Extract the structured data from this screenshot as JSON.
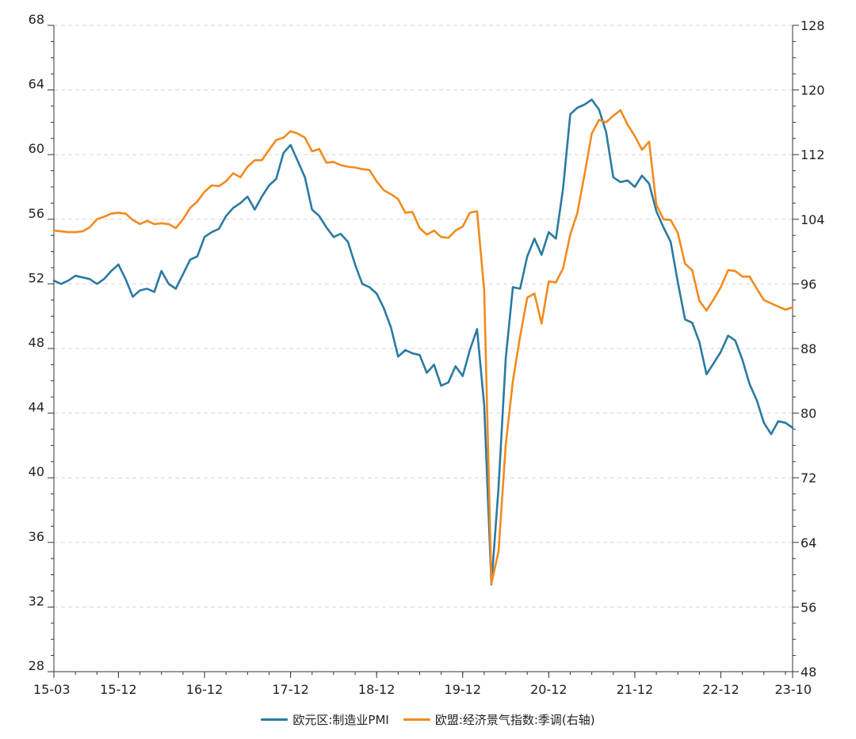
{
  "chart_data": {
    "type": "line",
    "title": "",
    "x_ticks": [
      "15-03",
      "15-12",
      "16-12",
      "17-12",
      "18-12",
      "19-12",
      "20-12",
      "21-12",
      "22-12",
      "23-10"
    ],
    "x_start": "2015-03",
    "x_end": "2023-10",
    "y_left": {
      "lim": [
        28,
        68
      ],
      "ticks": [
        28,
        32,
        36,
        40,
        44,
        48,
        52,
        56,
        60,
        64,
        68
      ]
    },
    "y_right": {
      "lim": [
        48,
        128
      ],
      "ticks": [
        48,
        56,
        64,
        72,
        80,
        88,
        96,
        104,
        112,
        120,
        128
      ]
    },
    "grid": "horizontal-dashed",
    "legend_position": "bottom",
    "series": [
      {
        "name": "欧元区:制造业PMI",
        "axis": "left",
        "color": "#2a7aa3",
        "values": [
          52.2,
          52.0,
          52.2,
          52.5,
          52.4,
          52.3,
          52.0,
          52.3,
          52.8,
          53.2,
          52.3,
          51.2,
          51.6,
          51.7,
          51.5,
          52.8,
          52.0,
          51.7,
          52.6,
          53.5,
          53.7,
          54.9,
          55.2,
          55.4,
          56.2,
          56.7,
          57.0,
          57.4,
          56.6,
          57.4,
          58.1,
          58.5,
          60.1,
          60.6,
          59.6,
          58.6,
          56.6,
          56.2,
          55.5,
          54.9,
          55.1,
          54.6,
          53.2,
          52.0,
          51.8,
          51.4,
          50.5,
          49.3,
          47.5,
          47.9,
          47.7,
          47.6,
          46.5,
          47.0,
          45.7,
          45.9,
          46.9,
          46.3,
          47.9,
          49.2,
          44.5,
          33.4,
          39.4,
          47.4,
          51.8,
          51.7,
          53.7,
          54.8,
          53.8,
          55.2,
          54.8,
          57.9,
          62.5,
          62.9,
          63.1,
          63.4,
          62.8,
          61.4,
          58.6,
          58.3,
          58.4,
          58.0,
          58.7,
          58.2,
          56.5,
          55.5,
          54.6,
          52.1,
          49.8,
          49.6,
          48.4,
          46.4,
          47.1,
          47.8,
          48.8,
          48.5,
          47.3,
          45.8,
          44.8,
          43.4,
          42.7,
          43.5,
          43.4,
          43.1
        ]
      },
      {
        "name": "欧盟:经济景气指数:季调(右轴)",
        "axis": "right",
        "color": "#f28a1e",
        "values": [
          102.6,
          102.5,
          102.4,
          102.4,
          102.5,
          103.0,
          104.0,
          104.3,
          104.7,
          104.8,
          104.7,
          103.9,
          103.4,
          103.8,
          103.4,
          103.5,
          103.4,
          102.9,
          104.0,
          105.4,
          106.2,
          107.4,
          108.2,
          108.1,
          108.7,
          109.7,
          109.2,
          110.5,
          111.3,
          111.3,
          112.6,
          113.8,
          114.1,
          114.9,
          114.6,
          114.1,
          112.4,
          112.7,
          111.0,
          111.1,
          110.7,
          110.5,
          110.4,
          110.2,
          110.1,
          108.7,
          107.6,
          107.1,
          106.5,
          104.8,
          104.9,
          102.9,
          102.1,
          102.6,
          101.8,
          101.7,
          102.6,
          103.1,
          104.8,
          105.0,
          95.2,
          58.9,
          62.9,
          76.1,
          84.0,
          89.5,
          94.3,
          94.8,
          91.1,
          96.3,
          96.2,
          97.9,
          102.1,
          104.8,
          109.6,
          114.6,
          116.3,
          116.0,
          116.8,
          117.5,
          115.7,
          114.3,
          112.6,
          113.6,
          105.8,
          104.0,
          103.9,
          102.3,
          98.5,
          97.7,
          93.9,
          92.7,
          94.1,
          95.6,
          97.7,
          97.6,
          96.9,
          96.9,
          95.4,
          94.0,
          93.6,
          93.2,
          92.8,
          93.1
        ]
      }
    ]
  }
}
